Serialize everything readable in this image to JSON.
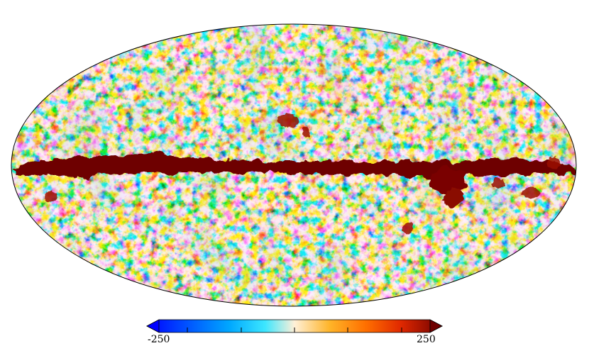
{
  "colorbar": {
    "min_label": "-250",
    "max_label": "250",
    "min": -250,
    "max": 250,
    "colors": [
      "#0000ff",
      "#0066ff",
      "#00c8ff",
      "#b4f0ff",
      "#fff0d2",
      "#ffc040",
      "#ff8000",
      "#ff3000",
      "#c00000",
      "#780000"
    ]
  }
}
